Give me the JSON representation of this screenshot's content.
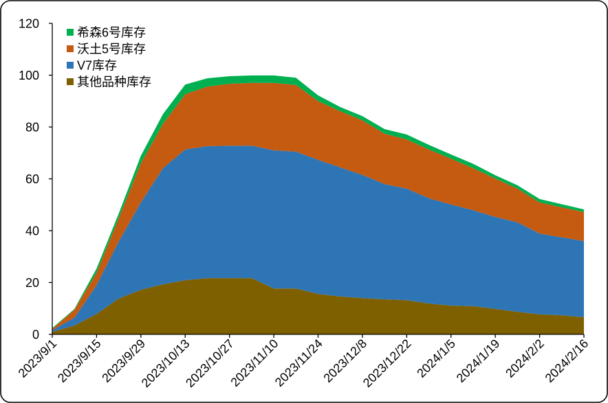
{
  "chart_data": {
    "type": "area",
    "stacked": true,
    "x": [
      "2023/9/1",
      "2023/9/8",
      "2023/9/15",
      "2023/9/22",
      "2023/9/29",
      "2023/10/6",
      "2023/10/13",
      "2023/10/20",
      "2023/10/27",
      "2023/11/3",
      "2023/11/10",
      "2023/11/17",
      "2023/11/24",
      "2023/12/1",
      "2023/12/8",
      "2023/12/15",
      "2023/12/22",
      "2023/12/29",
      "2024/1/5",
      "2024/1/12",
      "2024/1/19",
      "2024/1/26",
      "2024/2/2",
      "2024/2/9",
      "2024/2/16"
    ],
    "series": [
      {
        "name": "其他品种库存",
        "color": "#7F6000",
        "values": [
          1.0,
          3.4,
          7.9,
          13.8,
          17.2,
          19.3,
          20.9,
          21.7,
          21.7,
          21.7,
          17.7,
          17.7,
          15.6,
          14.6,
          14.0,
          13.5,
          13.2,
          11.9,
          11.1,
          10.9,
          9.8,
          8.7,
          7.7,
          7.4,
          6.6
        ]
      },
      {
        "name": "V7库存",
        "color": "#2E75B6",
        "values": [
          0.6,
          3.0,
          11.1,
          22.0,
          33.7,
          44.8,
          50.4,
          50.9,
          51.1,
          51.1,
          53.3,
          52.8,
          51.7,
          49.8,
          47.5,
          44.5,
          43.0,
          40.6,
          39.0,
          37.0,
          35.5,
          34.5,
          31.2,
          30.0,
          29.4
        ]
      },
      {
        "name": "沃土5号库存",
        "color": "#C55A11",
        "values": [
          0.5,
          3.1,
          4.8,
          9.0,
          15.1,
          17.2,
          21.4,
          23.0,
          23.9,
          24.2,
          26.0,
          25.7,
          22.7,
          21.7,
          21.1,
          19.4,
          19.0,
          18.8,
          17.7,
          16.2,
          14.8,
          13.0,
          12.0,
          11.6,
          11.2
        ]
      },
      {
        "name": "希森6号库存",
        "color": "#00B050",
        "values": [
          0.3,
          0.3,
          1.6,
          1.8,
          2.9,
          3.7,
          3.7,
          3.2,
          2.9,
          2.9,
          2.9,
          2.8,
          2.2,
          1.6,
          1.6,
          1.8,
          1.9,
          1.8,
          1.6,
          1.7,
          1.3,
          1.3,
          1.3,
          1.2,
          1.0
        ]
      }
    ],
    "x_ticks": [
      "2023/9/1",
      "2023/9/15",
      "2023/9/29",
      "2023/10/13",
      "2023/10/27",
      "2023/11/10",
      "2023/11/24",
      "2023/12/8",
      "2023/12/22",
      "2024/1/5",
      "2024/1/19",
      "2024/2/2",
      "2024/2/16"
    ],
    "y_ticks": [
      0,
      20,
      40,
      60,
      80,
      100,
      120
    ],
    "xlim": [
      "2023/9/1",
      "2024/2/16"
    ],
    "ylim": [
      0,
      120
    ],
    "grid": false,
    "legend_position": "top-left"
  }
}
